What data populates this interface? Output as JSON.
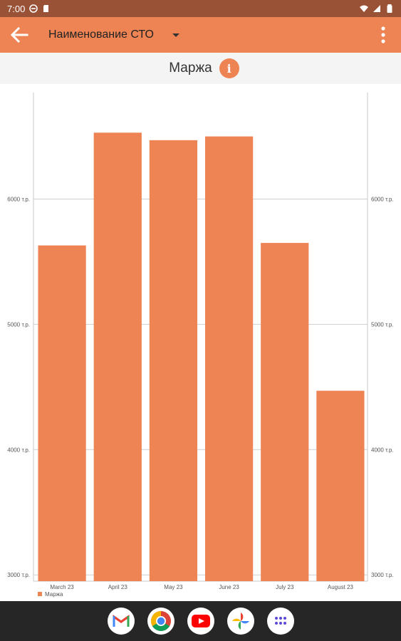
{
  "status_bar": {
    "time": "7:00",
    "icons": [
      "data-saver-icon",
      "sd-card-icon",
      "wifi-icon",
      "cellular-icon",
      "battery-icon"
    ]
  },
  "app_bar": {
    "station_label": "Наименование СТО",
    "color": "#ee8354"
  },
  "title_row": {
    "title": "Маржа",
    "info_icon_glyph": "i"
  },
  "chart_data": {
    "type": "bar",
    "categories": [
      "March 23",
      "April 23",
      "May 23",
      "June 23",
      "July 23",
      "August 23"
    ],
    "series": [
      {
        "name": "Маржа",
        "values": [
          5630,
          6530,
          6470,
          6500,
          5650,
          4470
        ],
        "color": "#ee8354"
      }
    ],
    "ylim": [
      2950,
      6850
    ],
    "yticks": [
      3000,
      4000,
      5000,
      6000
    ],
    "ytick_labels": [
      "3000 т.р.",
      "4000 т.р.",
      "5000 т.р.",
      "6000 т.р."
    ],
    "grid": true,
    "legend_position": "bottom-left",
    "dual_axis_labels": true
  },
  "dock": {
    "apps": [
      {
        "name": "gmail-icon"
      },
      {
        "name": "chrome-icon"
      },
      {
        "name": "youtube-icon"
      },
      {
        "name": "photos-icon"
      },
      {
        "name": "app-drawer-icon"
      }
    ]
  }
}
